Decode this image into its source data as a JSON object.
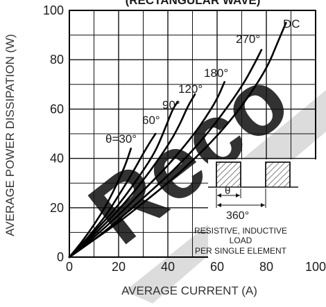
{
  "chart_data": {
    "type": "line",
    "title": "(RECTANGULAR WAVE)",
    "xlabel": "AVERAGE CURRENT (A)",
    "ylabel": "AVERAGE POWER DISSIPATION (W)",
    "xlim": [
      0,
      100
    ],
    "ylim": [
      0,
      100
    ],
    "x_ticks": [
      "0",
      "20",
      "40",
      "60",
      "80",
      "100"
    ],
    "y_ticks": [
      "0",
      "20",
      "40",
      "60",
      "80",
      "100"
    ],
    "grid": true,
    "series": [
      {
        "name": "θ=30°",
        "points": [
          [
            0,
            0
          ],
          [
            5,
            6
          ],
          [
            10,
            13
          ],
          [
            15,
            21
          ],
          [
            20,
            31
          ],
          [
            23,
            38
          ],
          [
            25,
            44
          ]
        ]
      },
      {
        "name": "60°",
        "points": [
          [
            0,
            0
          ],
          [
            5,
            5
          ],
          [
            10,
            11
          ],
          [
            15,
            17
          ],
          [
            20,
            25
          ],
          [
            25,
            33
          ],
          [
            30,
            42
          ],
          [
            33,
            47
          ],
          [
            35,
            50
          ]
        ]
      },
      {
        "name": "90°",
        "points": [
          [
            0,
            0
          ],
          [
            10,
            10
          ],
          [
            20,
            21
          ],
          [
            30,
            35
          ],
          [
            35,
            43
          ],
          [
            38,
            50
          ],
          [
            40,
            55
          ],
          [
            42,
            60
          ],
          [
            44,
            63
          ]
        ]
      },
      {
        "name": "120°",
        "points": [
          [
            0,
            0
          ],
          [
            10,
            9
          ],
          [
            20,
            19
          ],
          [
            30,
            31
          ],
          [
            40,
            45
          ],
          [
            45,
            54
          ],
          [
            48,
            61
          ],
          [
            51,
            66
          ]
        ]
      },
      {
        "name": "180°",
        "points": [
          [
            0,
            0
          ],
          [
            10,
            8
          ],
          [
            20,
            17
          ],
          [
            30,
            27
          ],
          [
            40,
            37
          ],
          [
            50,
            49
          ],
          [
            55,
            56
          ],
          [
            60,
            64
          ],
          [
            63,
            71
          ]
        ]
      },
      {
        "name": "270°",
        "points": [
          [
            0,
            0
          ],
          [
            10,
            7
          ],
          [
            20,
            15
          ],
          [
            30,
            24
          ],
          [
            40,
            33
          ],
          [
            50,
            43
          ],
          [
            60,
            55
          ],
          [
            70,
            69
          ],
          [
            75,
            78
          ],
          [
            78,
            84
          ]
        ]
      },
      {
        "name": "DC",
        "points": [
          [
            0,
            0
          ],
          [
            10,
            7
          ],
          [
            20,
            14
          ],
          [
            30,
            22
          ],
          [
            40,
            30
          ],
          [
            50,
            39
          ],
          [
            60,
            49
          ],
          [
            70,
            61
          ],
          [
            80,
            76
          ],
          [
            85,
            88
          ],
          [
            88,
            95
          ]
        ]
      }
    ],
    "inset": {
      "theta_label": "θ",
      "period_label": "360°",
      "caption_lines": [
        "RESISTIVE, INDUCTIVE",
        "LOAD",
        "PER SINGLE ELEMENT"
      ]
    },
    "watermark": "Reco"
  }
}
